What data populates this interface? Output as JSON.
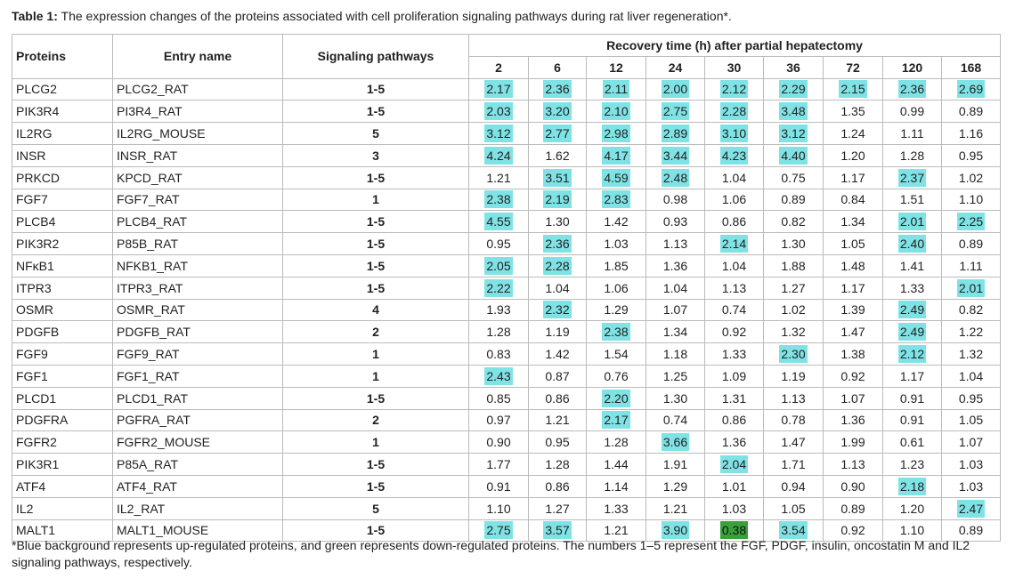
{
  "caption": {
    "label": "Table 1:",
    "text": " The expression changes of the proteins associated with cell proliferation signaling pathways during rat liver regeneration*."
  },
  "header": {
    "proteins": "Proteins",
    "entry": "Entry name",
    "pathways": "Signaling pathways",
    "recovery": "Recovery time (h) after partial hepatectomy",
    "times": [
      "2",
      "6",
      "12",
      "24",
      "30",
      "36",
      "72",
      "120",
      "168"
    ]
  },
  "rows": [
    {
      "protein": "PLCG2",
      "entry": "PLCG2_RAT",
      "pathway": "1-5",
      "values": [
        "2.17",
        "2.36",
        "2.11",
        "2.00",
        "2.12",
        "2.29",
        "2.15",
        "2.36",
        "2.69"
      ],
      "marks": [
        "up",
        "up",
        "up",
        "up",
        "up",
        "up",
        "up",
        "up",
        "up"
      ]
    },
    {
      "protein": "PIK3R4",
      "entry": "PI3R4_RAT",
      "pathway": "1-5",
      "values": [
        "2.03",
        "3.20",
        "2.10",
        "2.75",
        "2.28",
        "3.48",
        "1.35",
        "0.99",
        "0.89"
      ],
      "marks": [
        "up",
        "up",
        "up",
        "up",
        "up",
        "up",
        "",
        "",
        ""
      ]
    },
    {
      "protein": "IL2RG",
      "entry": "IL2RG_MOUSE",
      "pathway": "5",
      "values": [
        "3.12",
        "2.77",
        "2.98",
        "2.89",
        "3.10",
        "3.12",
        "1.24",
        "1.11",
        "1.16"
      ],
      "marks": [
        "up",
        "up",
        "up",
        "up",
        "up",
        "up",
        "",
        "",
        ""
      ]
    },
    {
      "protein": "INSR",
      "entry": "INSR_RAT",
      "pathway": "3",
      "values": [
        "4.24",
        "1.62",
        "4.17",
        "3.44",
        "4.23",
        "4.40",
        "1.20",
        "1.28",
        "0.95"
      ],
      "marks": [
        "up",
        "",
        "up",
        "up",
        "up",
        "up",
        "",
        "",
        ""
      ]
    },
    {
      "protein": "PRKCD",
      "entry": "KPCD_RAT",
      "pathway": "1-5",
      "values": [
        "1.21",
        "3.51",
        "4.59",
        "2.48",
        "1.04",
        "0.75",
        "1.17",
        "2.37",
        "1.02"
      ],
      "marks": [
        "",
        "up",
        "up",
        "up",
        "",
        "",
        "",
        "up",
        ""
      ]
    },
    {
      "protein": "FGF7",
      "entry": "FGF7_RAT",
      "pathway": "1",
      "values": [
        "2.38",
        "2.19",
        "2.83",
        "0.98",
        "1.06",
        "0.89",
        "0.84",
        "1.51",
        "1.10"
      ],
      "marks": [
        "up",
        "up",
        "up",
        "",
        "",
        "",
        "",
        "",
        ""
      ]
    },
    {
      "protein": "PLCB4",
      "entry": "PLCB4_RAT",
      "pathway": "1-5",
      "values": [
        "4.55",
        "1.30",
        "1.42",
        "0.93",
        "0.86",
        "0.82",
        "1.34",
        "2.01",
        "2.25"
      ],
      "marks": [
        "up",
        "",
        "",
        "",
        "",
        "",
        "",
        "up",
        "up"
      ]
    },
    {
      "protein": "PIK3R2",
      "entry": "P85B_RAT",
      "pathway": "1-5",
      "values": [
        "0.95",
        "2.36",
        "1.03",
        "1.13",
        "2.14",
        "1.30",
        "1.05",
        "2.40",
        "0.89"
      ],
      "marks": [
        "",
        "up",
        "",
        "",
        "up",
        "",
        "",
        "up",
        ""
      ]
    },
    {
      "protein": "NFκB1",
      "entry": "NFKB1_RAT",
      "pathway": "1-5",
      "values": [
        "2.05",
        "2.28",
        "1.85",
        "1.36",
        "1.04",
        "1.88",
        "1.48",
        "1.41",
        "1.11"
      ],
      "marks": [
        "up",
        "up",
        "",
        "",
        "",
        "",
        "",
        "",
        ""
      ]
    },
    {
      "protein": "ITPR3",
      "entry": "ITPR3_RAT",
      "pathway": "1-5",
      "values": [
        "2.22",
        "1.04",
        "1.06",
        "1.04",
        "1.13",
        "1.27",
        "1.17",
        "1.33",
        "2.01"
      ],
      "marks": [
        "up",
        "",
        "",
        "",
        "",
        "",
        "",
        "",
        "up"
      ]
    },
    {
      "protein": "OSMR",
      "entry": "OSMR_RAT",
      "pathway": "4",
      "values": [
        "1.93",
        "2.32",
        "1.29",
        "1.07",
        "0.74",
        "1.02",
        "1.39",
        "2.49",
        "0.82"
      ],
      "marks": [
        "",
        "up",
        "",
        "",
        "",
        "",
        "",
        "up",
        ""
      ]
    },
    {
      "protein": "PDGFB",
      "entry": "PDGFB_RAT",
      "pathway": "2",
      "values": [
        "1.28",
        "1.19",
        "2.38",
        "1.34",
        "0.92",
        "1.32",
        "1.47",
        "2.49",
        "1.22"
      ],
      "marks": [
        "",
        "",
        "up",
        "",
        "",
        "",
        "",
        "up",
        ""
      ]
    },
    {
      "protein": "FGF9",
      "entry": "FGF9_RAT",
      "pathway": "1",
      "values": [
        "0.83",
        "1.42",
        "1.54",
        "1.18",
        "1.33",
        "2.30",
        "1.38",
        "2.12",
        "1.32"
      ],
      "marks": [
        "",
        "",
        "",
        "",
        "",
        "up",
        "",
        "up",
        ""
      ]
    },
    {
      "protein": "FGF1",
      "entry": "FGF1_RAT",
      "pathway": "1",
      "values": [
        "2.43",
        "0.87",
        "0.76",
        "1.25",
        "1.09",
        "1.19",
        "0.92",
        "1.17",
        "1.04"
      ],
      "marks": [
        "up",
        "",
        "",
        "",
        "",
        "",
        "",
        "",
        ""
      ]
    },
    {
      "protein": "PLCD1",
      "entry": "PLCD1_RAT",
      "pathway": "1-5",
      "values": [
        "0.85",
        "0.86",
        "2.20",
        "1.30",
        "1.31",
        "1.13",
        "1.07",
        "0.91",
        "0.95"
      ],
      "marks": [
        "",
        "",
        "up",
        "",
        "",
        "",
        "",
        "",
        ""
      ]
    },
    {
      "protein": "PDGFRA",
      "entry": "PGFRA_RAT",
      "pathway": "2",
      "values": [
        "0.97",
        "1.21",
        "2.17",
        "0.74",
        "0.86",
        "0.78",
        "1.36",
        "0.91",
        "1.05"
      ],
      "marks": [
        "",
        "",
        "up",
        "",
        "",
        "",
        "",
        "",
        ""
      ]
    },
    {
      "protein": "FGFR2",
      "entry": "FGFR2_MOUSE",
      "pathway": "1",
      "values": [
        "0.90",
        "0.95",
        "1.28",
        "3.66",
        "1.36",
        "1.47",
        "1.99",
        "0.61",
        "1.07"
      ],
      "marks": [
        "",
        "",
        "",
        "up",
        "",
        "",
        "",
        "",
        ""
      ]
    },
    {
      "protein": "PIK3R1",
      "entry": "P85A_RAT",
      "pathway": "1-5",
      "values": [
        "1.77",
        "1.28",
        "1.44",
        "1.91",
        "2.04",
        "1.71",
        "1.13",
        "1.23",
        "1.03"
      ],
      "marks": [
        "",
        "",
        "",
        "",
        "up",
        "",
        "",
        "",
        ""
      ]
    },
    {
      "protein": "ATF4",
      "entry": "ATF4_RAT",
      "pathway": "1-5",
      "values": [
        "0.91",
        "0.86",
        "1.14",
        "1.29",
        "1.01",
        "0.94",
        "0.90",
        "2.18",
        "1.03"
      ],
      "marks": [
        "",
        "",
        "",
        "",
        "",
        "",
        "",
        "up",
        ""
      ]
    },
    {
      "protein": "IL2",
      "entry": "IL2_RAT",
      "pathway": "5",
      "values": [
        "1.10",
        "1.27",
        "1.33",
        "1.21",
        "1.03",
        "1.05",
        "0.89",
        "1.20",
        "2.47"
      ],
      "marks": [
        "",
        "",
        "",
        "",
        "",
        "",
        "",
        "",
        "up"
      ]
    },
    {
      "protein": "MALT1",
      "entry": "MALT1_MOUSE",
      "pathway": "1-5",
      "values": [
        "2.75",
        "3.57",
        "1.21",
        "3.90",
        "0.38",
        "3.54",
        "0.92",
        "1.10",
        "0.89"
      ],
      "marks": [
        "up",
        "up",
        "",
        "up",
        "down",
        "up",
        "",
        "",
        ""
      ]
    }
  ],
  "footnote": "*Blue background represents up-regulated proteins, and green represents down-regulated proteins. The numbers 1–5 represent the FGF, PDGF, insulin, oncostatin M and IL2 signaling pathways, respectively.",
  "colors": {
    "up": "#7fe3e6",
    "down": "#3aa03c",
    "border": "#bbbbbb"
  }
}
